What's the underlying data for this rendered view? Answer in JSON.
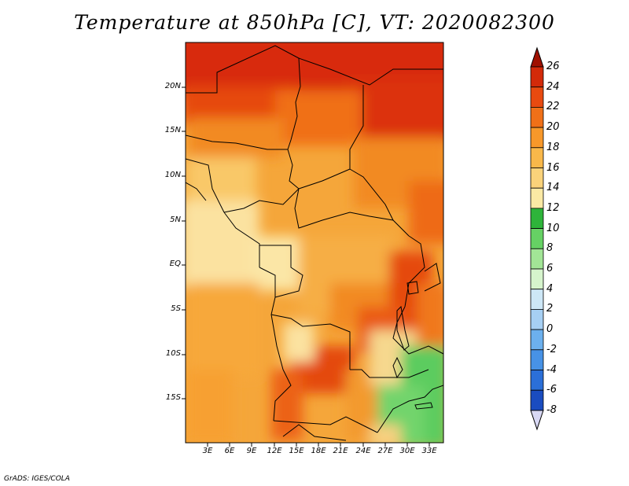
{
  "title": "Temperature at 850hPa [C], VT: 2020082300",
  "footer": "GrADS: IGES/COLA",
  "map": {
    "region": "Central Africa",
    "lat_labels": [
      "20N",
      "15N",
      "10N",
      "5N",
      "EQ",
      "5S",
      "10S",
      "15S"
    ],
    "lon_labels": [
      "3E",
      "6E",
      "9E",
      "12E",
      "15E",
      "18E",
      "21E",
      "24E",
      "27E",
      "30E",
      "33E"
    ],
    "variable": "Temperature at 850hPa",
    "units": "C",
    "valid_time": "2020082300"
  },
  "colorbar": {
    "labels": [
      "26",
      "24",
      "22",
      "20",
      "18",
      "16",
      "14",
      "12",
      "10",
      "8",
      "6",
      "4",
      "2",
      "0",
      "-2",
      "-4",
      "-6",
      "-8"
    ],
    "colors": [
      "#b41e05",
      "#d32a0a",
      "#e84a10",
      "#f07018",
      "#f7982a",
      "#f9b84a",
      "#fad27a",
      "#fbe9a4",
      "#2eb43a",
      "#66d164",
      "#a2e596",
      "#d6f4cc",
      "#cde7f6",
      "#a6cff3",
      "#6cb0ee",
      "#4792e6",
      "#2b6fd8",
      "#1a4cc0",
      "#0b2a8f"
    ],
    "arrow_top_color": "#a01000",
    "arrow_bottom_color": "#d8d8f4"
  }
}
